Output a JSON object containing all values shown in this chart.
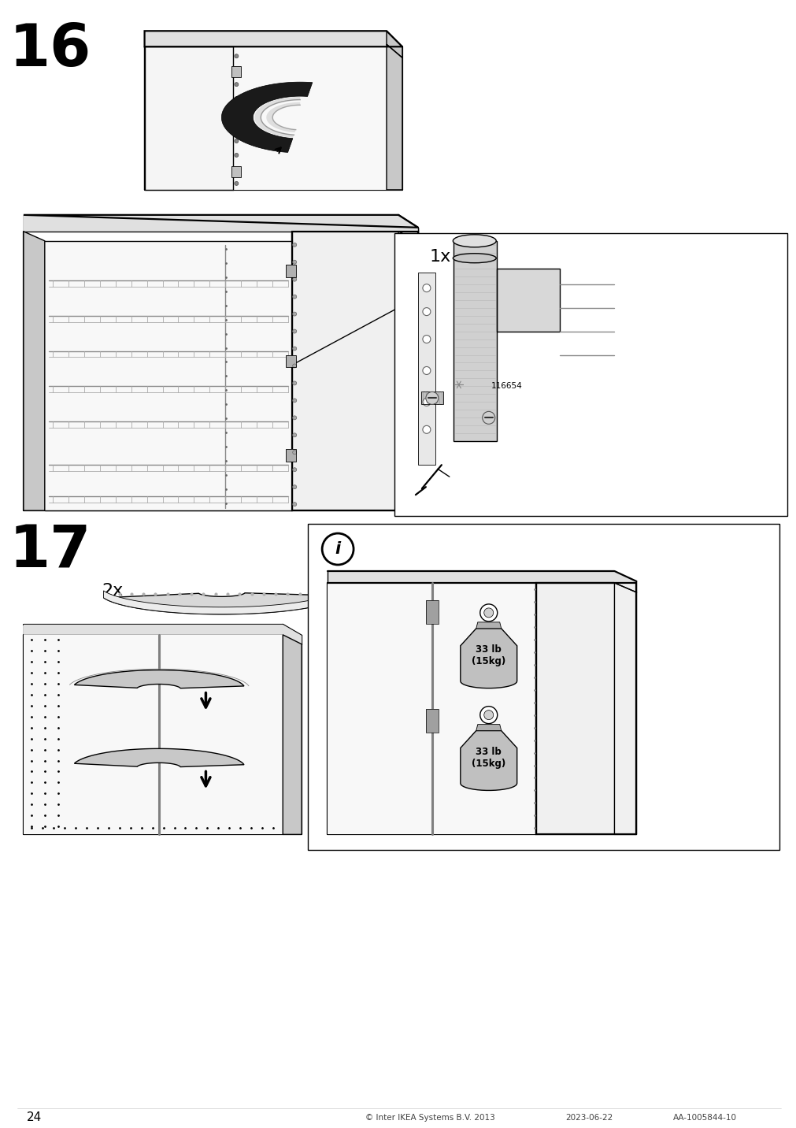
{
  "page_number": "24",
  "step_16": "16",
  "step_17": "17",
  "copyright": "© Inter IKEA Systems B.V. 2013",
  "date": "2023-06-22",
  "article": "AA-1005844-10",
  "background_color": "#ffffff",
  "label_1x": "1x",
  "label_2x": "2x",
  "part_number": "116654",
  "weight1": "33 lb\n(15kg)",
  "weight2": "33 lb\n(15kg)",
  "lw_thin": 0.6,
  "lw_med": 1.0,
  "lw_thick": 1.6,
  "lw_xthick": 2.5,
  "gray_top": "#e0e0e0",
  "gray_side": "#c8c8c8",
  "gray_front": "#f0f0f0",
  "gray_dark": "#a0a0a0",
  "gray_interior": "#f8f8f8"
}
